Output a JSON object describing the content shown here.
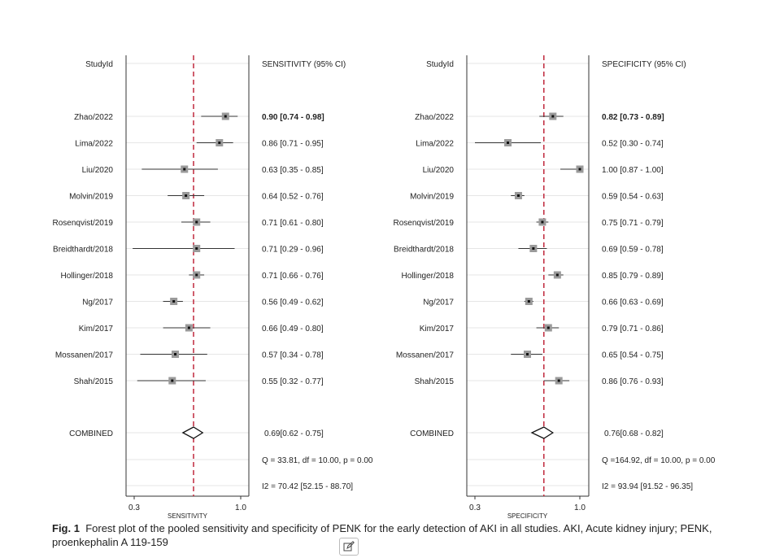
{
  "chart_data": [
    {
      "type": "forest",
      "header_study": "StudyId",
      "header_estimate": "SENSITIVITY (95% CI)",
      "xlabel": "SENSITIVITY",
      "xticks": [
        "0.3",
        "1.0"
      ],
      "xlim": [
        0.3,
        1.0
      ],
      "pooled_value": 0.69,
      "studies": [
        {
          "name": "Zhao/2022",
          "est": 0.9,
          "lo": 0.74,
          "hi": 0.98,
          "label": "0.90 [0.74 - 0.98]"
        },
        {
          "name": "Lima/2022",
          "est": 0.86,
          "lo": 0.71,
          "hi": 0.95,
          "label": "0.86 [0.71 - 0.95]"
        },
        {
          "name": "Liu/2020",
          "est": 0.63,
          "lo": 0.35,
          "hi": 0.85,
          "label": "0.63 [0.35 - 0.85]"
        },
        {
          "name": "Molvin/2019",
          "est": 0.64,
          "lo": 0.52,
          "hi": 0.76,
          "label": "0.64 [0.52 - 0.76]"
        },
        {
          "name": "Rosenqvist/2019",
          "est": 0.71,
          "lo": 0.61,
          "hi": 0.8,
          "label": "0.71 [0.61 - 0.80]"
        },
        {
          "name": "Breidthardt/2018",
          "est": 0.71,
          "lo": 0.29,
          "hi": 0.96,
          "label": "0.71 [0.29 - 0.96]"
        },
        {
          "name": "Hollinger/2018",
          "est": 0.71,
          "lo": 0.66,
          "hi": 0.76,
          "label": "0.71 [0.66 - 0.76]"
        },
        {
          "name": "Ng/2017",
          "est": 0.56,
          "lo": 0.49,
          "hi": 0.62,
          "label": "0.56 [0.49 - 0.62]"
        },
        {
          "name": "Kim/2017",
          "est": 0.66,
          "lo": 0.49,
          "hi": 0.8,
          "label": "0.66 [0.49 - 0.80]"
        },
        {
          "name": "Mossanen/2017",
          "est": 0.57,
          "lo": 0.34,
          "hi": 0.78,
          "label": "0.57 [0.34 - 0.78]"
        },
        {
          "name": "Shah/2015",
          "est": 0.55,
          "lo": 0.32,
          "hi": 0.77,
          "label": "0.55 [0.32 - 0.77]"
        }
      ],
      "combined": {
        "name": "COMBINED",
        "est": 0.69,
        "lo": 0.62,
        "hi": 0.75,
        "label": "0.69[0.62 - 0.75]"
      },
      "q_stat": "Q = 33.81, df = 10.00, p =  0.00",
      "i2_stat": "I2 = 70.42 [52.15 - 88.70]"
    },
    {
      "type": "forest",
      "header_study": "StudyId",
      "header_estimate": "SPECIFICITY (95% CI)",
      "xlabel": "SPECIFICITY",
      "xticks": [
        "0.3",
        "1.0"
      ],
      "xlim": [
        0.3,
        1.0
      ],
      "pooled_value": 0.76,
      "studies": [
        {
          "name": "Zhao/2022",
          "est": 0.82,
          "lo": 0.73,
          "hi": 0.89,
          "label": "0.82 [0.73 - 0.89]"
        },
        {
          "name": "Lima/2022",
          "est": 0.52,
          "lo": 0.3,
          "hi": 0.74,
          "label": "0.52 [0.30 - 0.74]"
        },
        {
          "name": "Liu/2020",
          "est": 1.0,
          "lo": 0.87,
          "hi": 1.0,
          "label": "1.00 [0.87 - 1.00]"
        },
        {
          "name": "Molvin/2019",
          "est": 0.59,
          "lo": 0.54,
          "hi": 0.63,
          "label": "0.59 [0.54 - 0.63]"
        },
        {
          "name": "Rosenqvist/2019",
          "est": 0.75,
          "lo": 0.71,
          "hi": 0.79,
          "label": "0.75 [0.71 - 0.79]"
        },
        {
          "name": "Breidthardt/2018",
          "est": 0.69,
          "lo": 0.59,
          "hi": 0.78,
          "label": "0.69 [0.59 - 0.78]"
        },
        {
          "name": "Hollinger/2018",
          "est": 0.85,
          "lo": 0.79,
          "hi": 0.89,
          "label": "0.85 [0.79 - 0.89]"
        },
        {
          "name": "Ng/2017",
          "est": 0.66,
          "lo": 0.63,
          "hi": 0.69,
          "label": "0.66 [0.63 - 0.69]"
        },
        {
          "name": "Kim/2017",
          "est": 0.79,
          "lo": 0.71,
          "hi": 0.86,
          "label": "0.79 [0.71 - 0.86]"
        },
        {
          "name": "Mossanen/2017",
          "est": 0.65,
          "lo": 0.54,
          "hi": 0.75,
          "label": "0.65 [0.54 - 0.75]"
        },
        {
          "name": "Shah/2015",
          "est": 0.86,
          "lo": 0.76,
          "hi": 0.93,
          "label": "0.86 [0.76 - 0.93]"
        }
      ],
      "combined": {
        "name": "COMBINED",
        "est": 0.76,
        "lo": 0.68,
        "hi": 0.82,
        "label": "0.76[0.68 - 0.82]"
      },
      "q_stat": "Q =164.92, df = 10.00, p =  0.00",
      "i2_stat": "I2 = 93.94 [91.52 - 96.35]"
    }
  ],
  "caption": {
    "label": "Fig. 1",
    "text": "Forest plot of the pooled sensitivity and specificity of PENK for the early detection of AKI in all studies. AKI, Acute kidney injury; PENK, proenkephalin A 119-159"
  },
  "colors": {
    "reference_line": "#c0283c",
    "marker_fill": "#9a9a9a",
    "gridline": "#e6e6e6"
  },
  "icons": {
    "edit": "edit-icon"
  }
}
